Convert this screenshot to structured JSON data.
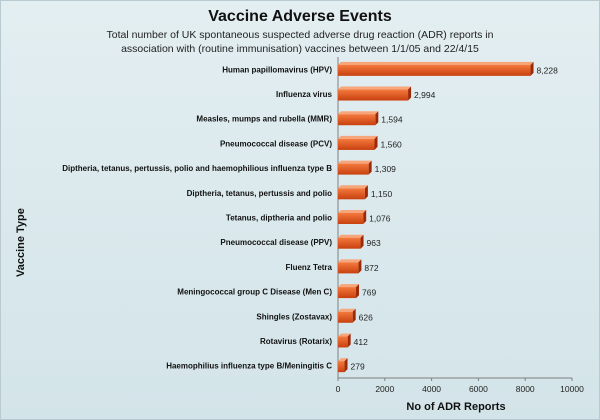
{
  "chart_data": {
    "type": "bar",
    "orientation": "horizontal",
    "title": "Vaccine Adverse Events",
    "subtitle": "Total number of UK spontaneous suspected adverse drug reaction (ADR) reports in association with (routine immunisation) vaccines between 1/1/05 and 22/4/15",
    "xlabel": "No of ADR Reports",
    "ylabel": "Vaccine Type",
    "xlim": [
      0,
      10000
    ],
    "xticks": [
      0,
      2000,
      4000,
      6000,
      8000,
      10000
    ],
    "grid": false,
    "categories": [
      "Human papillomavirus (HPV)",
      "Influenza virus",
      "Measles, mumps and rubella (MMR)",
      "Pneumococcal  disease (PCV)",
      "Diptheria, tetanus, pertussis, polio and haemophilious influenza type B",
      "Diptheria, tetanus, pertussis and polio",
      "Tetanus, diptheria and polio",
      "Pneumococcal  disease (PPV)",
      "Fluenz Tetra",
      "Meningococcal group C Disease (Men C)",
      "Shingles (Zostavax)",
      "Rotavirus (Rotarix)",
      "Haemophilius influenza type B/Meningitis C"
    ],
    "values": [
      8228,
      2994,
      1594,
      1560,
      1309,
      1150,
      1076,
      963,
      872,
      769,
      626,
      412,
      279
    ],
    "value_labels": [
      "8,228",
      "2,994",
      "1,594",
      "1,560",
      "1,309",
      "1,150",
      "1,076",
      "963",
      "872",
      "769",
      "626",
      "412",
      "279"
    ],
    "colors": {
      "bar_front": "#e2501c",
      "bar_light": "#f47a3e",
      "bar_top": "#f7a57a",
      "bar_side": "#9c2a08",
      "axis": "#808080",
      "background": "#d9e8ec"
    }
  }
}
